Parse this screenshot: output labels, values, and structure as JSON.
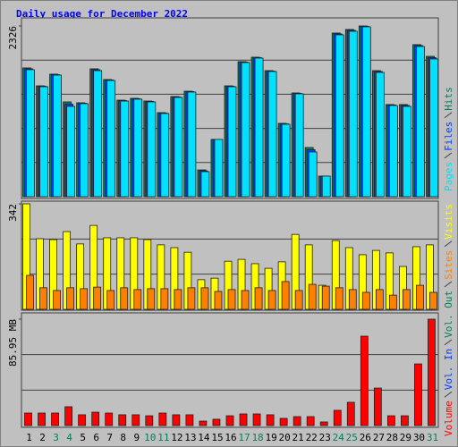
{
  "chart_data": [
    {
      "type": "bar",
      "title": "Daily usage for December 2022",
      "ylim": [
        0,
        2326
      ],
      "yticks": [
        2326
      ],
      "series": [
        {
          "name": "Hits",
          "color": "#00805c",
          "values": [
            1754,
            1510,
            1669,
            1291,
            1279,
            1742,
            1596,
            1315,
            1340,
            1303,
            1145,
            1364,
            1437,
            365,
            780,
            1510,
            1839,
            1900,
            1717,
            999,
            1413,
            670,
            280,
            2229,
            2278,
            2326,
            1717,
            1255,
            1255,
            2071,
            1912
          ]
        },
        {
          "name": "Files",
          "color": "#0040ff",
          "values": [
            1742,
            1504,
            1662,
            1260,
            1273,
            1730,
            1590,
            1309,
            1334,
            1297,
            1139,
            1358,
            1431,
            353,
            780,
            1504,
            1833,
            1894,
            1711,
            993,
            1407,
            640,
            280,
            2217,
            2266,
            2320,
            1705,
            1249,
            1243,
            2059,
            1894
          ]
        },
        {
          "name": "Pages",
          "color": "#00e0ff",
          "values": [
            1730,
            1498,
            1656,
            1230,
            1267,
            1717,
            1583,
            1303,
            1328,
            1291,
            1133,
            1352,
            1425,
            341,
            780,
            1498,
            1827,
            1888,
            1705,
            987,
            1401,
            609,
            280,
            2205,
            2253,
            2314,
            1693,
            1242,
            1230,
            2046,
            1876
          ]
        }
      ]
    },
    {
      "type": "bar",
      "ylim": [
        0,
        342
      ],
      "yticks": [
        342
      ],
      "series": [
        {
          "name": "Visits",
          "color": "#ffff00",
          "values": [
            342,
            229,
            226,
            252,
            212,
            272,
            232,
            232,
            232,
            226,
            209,
            200,
            185,
            96,
            101,
            156,
            162,
            148,
            133,
            154,
            243,
            209,
            78,
            223,
            200,
            177,
            191,
            183,
            139,
            203,
            209
          ]
        },
        {
          "name": "Sites",
          "color": "#ff8000",
          "values": [
            110,
            70,
            61,
            70,
            67,
            72,
            61,
            70,
            64,
            67,
            67,
            64,
            70,
            70,
            58,
            64,
            61,
            70,
            61,
            90,
            61,
            81,
            75,
            70,
            64,
            55,
            64,
            46,
            64,
            78,
            55
          ]
        }
      ]
    },
    {
      "type": "bar",
      "ylim": [
        0,
        85.95
      ],
      "yticks": [
        {
          "value": 85.95,
          "label": "85.95 MB"
        }
      ],
      "categories": [
        "1",
        "2",
        "3",
        "4",
        "5",
        "6",
        "7",
        "8",
        "9",
        "10",
        "11",
        "12",
        "13",
        "14",
        "15",
        "16",
        "17",
        "18",
        "19",
        "20",
        "21",
        "22",
        "23",
        "24",
        "25",
        "26",
        "27",
        "28",
        "29",
        "30",
        "31"
      ],
      "category_colors": [
        "#000000",
        "#000000",
        "#00805c",
        "#00805c",
        "#000000",
        "#000000",
        "#000000",
        "#000000",
        "#000000",
        "#00805c",
        "#00805c",
        "#000000",
        "#000000",
        "#000000",
        "#000000",
        "#000000",
        "#00805c",
        "#00805c",
        "#000000",
        "#000000",
        "#000000",
        "#000000",
        "#000000",
        "#00805c",
        "#00805c",
        "#000000",
        "#000000",
        "#000000",
        "#000000",
        "#000000",
        "#00805c"
      ],
      "series": [
        {
          "name": "Volume",
          "color": "#ff0000",
          "values": [
            10.1,
            10.1,
            10.1,
            15.2,
            8.7,
            10.8,
            10.1,
            8.7,
            8.7,
            7.9,
            10.1,
            8.7,
            8.7,
            3.6,
            5.1,
            7.9,
            9.4,
            9.4,
            8.7,
            5.8,
            7.2,
            7.2,
            2.9,
            12.3,
            18.8,
            72.2,
            30.3,
            7.9,
            7.9,
            49.8,
            85.95
          ]
        },
        {
          "name": "Vol. In",
          "color": "#0040ff"
        },
        {
          "name": "Vol. Out",
          "color": "#00805c"
        }
      ]
    }
  ]
}
